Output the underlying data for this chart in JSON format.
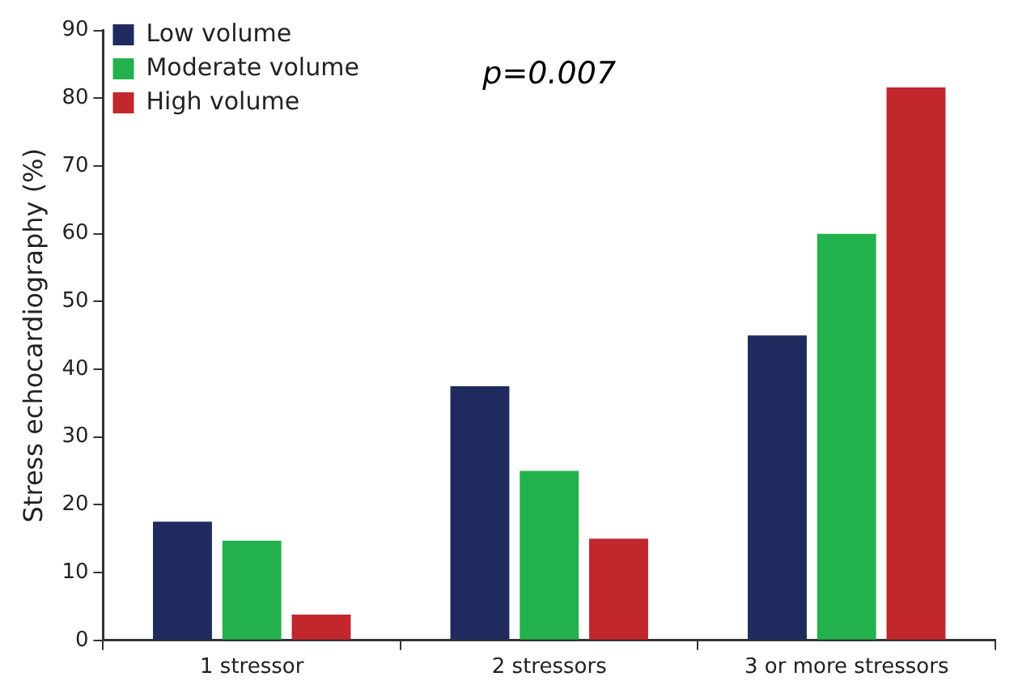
{
  "chart_data": {
    "type": "bar",
    "ylabel": "Stress echocardiography (%)",
    "categories": [
      "1 stressor",
      "2 stressors",
      "3 or more stressors"
    ],
    "series": [
      {
        "name": "Low volume",
        "color": "#1f2a5e",
        "values": [
          17.5,
          37.5,
          45
        ]
      },
      {
        "name": "Moderate volume",
        "color": "#22b14c",
        "values": [
          14.7,
          25,
          60
        ]
      },
      {
        "name": "High volume",
        "color": "#c1272d",
        "values": [
          3.8,
          15,
          81.6
        ]
      }
    ],
    "ylim": [
      0,
      90
    ],
    "yticks": [
      0,
      10,
      20,
      30,
      40,
      50,
      60,
      70,
      80,
      90
    ],
    "grid": false,
    "legend": "top left",
    "annotations": [
      "p=0.007"
    ]
  }
}
